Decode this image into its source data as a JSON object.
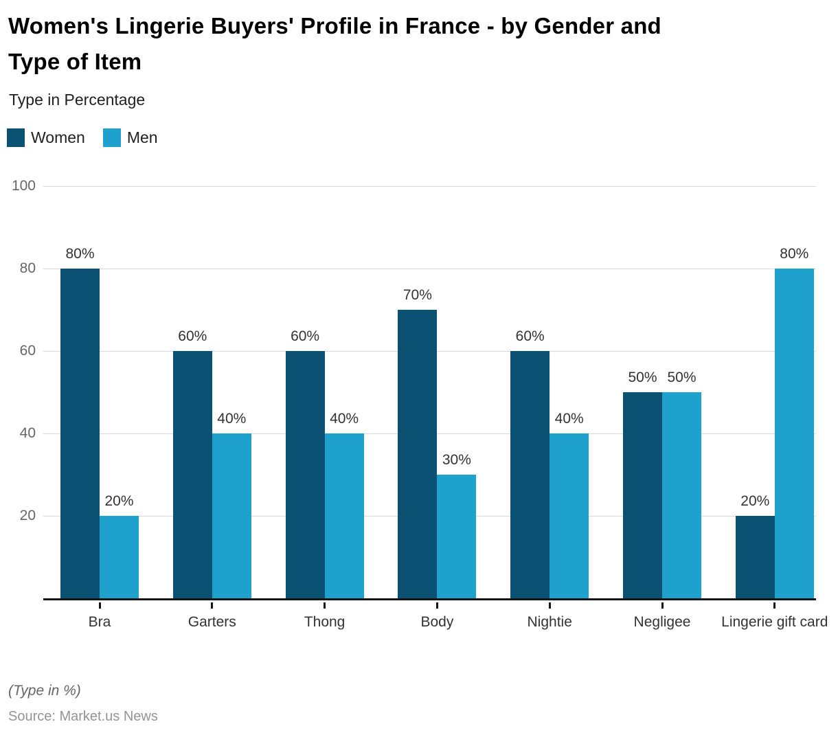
{
  "header": {
    "title_line1": "Women's Lingerie Buyers' Profile in France - by Gender and",
    "title_line2": "Type of Item",
    "subtitle": "Type in Percentage"
  },
  "legend": [
    {
      "label": "Women",
      "color": "#0a5173"
    },
    {
      "label": "Men",
      "color": "#1fa1ce"
    }
  ],
  "footer": {
    "note": "(Type in %)",
    "source": "Source: Market.us News"
  },
  "chart_data": {
    "type": "bar",
    "title": "Women's Lingerie Buyers' Profile in France - by Gender and Type of Item",
    "subtitle": "Type in Percentage",
    "categories": [
      "Bra",
      "Garters",
      "Thong",
      "Body",
      "Nightie",
      "Negligee",
      "Lingerie gift card"
    ],
    "series": [
      {
        "name": "Women",
        "color": "#0a5173",
        "values": [
          80,
          60,
          60,
          70,
          60,
          50,
          20
        ]
      },
      {
        "name": "Men",
        "color": "#1fa1ce",
        "values": [
          20,
          40,
          40,
          30,
          40,
          50,
          80
        ]
      }
    ],
    "value_suffix": "%",
    "xlabel": "",
    "ylabel": "",
    "ylim": [
      0,
      100
    ],
    "yticks": [
      100,
      80,
      60,
      40,
      20
    ],
    "grid": true,
    "legend_position": "top-left",
    "colors": {
      "grid": "#d9d9d9",
      "axis": "#151515",
      "value_text": "#333333",
      "tick_text": "#666666"
    }
  }
}
